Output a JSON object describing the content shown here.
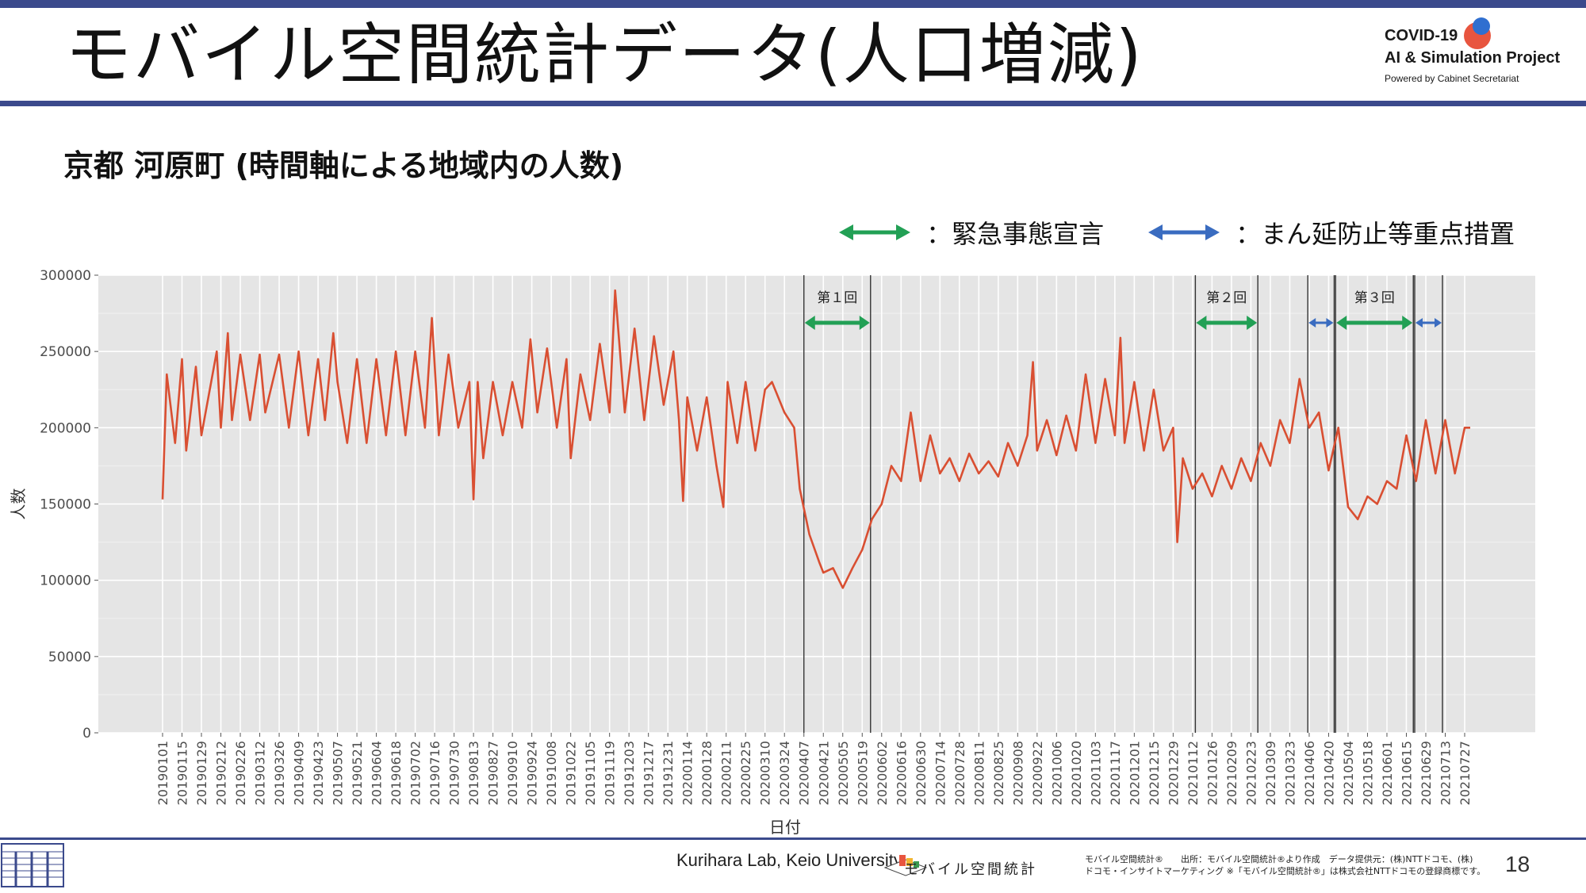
{
  "slide": {
    "title": "モバイル空間統計データ(人口増減)",
    "subtitle": "京都 河原町 (時間軸による地域内の人数)",
    "page_number": "18"
  },
  "logo": {
    "line1": "COVID-19",
    "line2": "AI & Simulation Project",
    "line3": "Powered by Cabinet Secretariat"
  },
  "legend": {
    "emergency": "：緊急事態宣言",
    "priority": "：まん延防止等重点措置"
  },
  "footer": {
    "credit": "Kurihara Lab, Keio University",
    "mobile_logo": "モバイル空間統計",
    "source_line1": "モバイル空間統計®　　出所：モバイル空間統計®より作成　データ提供元：(株)NTTドコモ、(株)",
    "source_line2": "ドコモ・インサイトマーケティング ※「モバイル空間統計®」は株式会社NTTドコモの登録商標です。"
  },
  "colors": {
    "brand_blue": "#3b4a8c",
    "series_red": "#d94f32",
    "emergency_green": "#22a055",
    "priority_blue": "#3a6cc0",
    "panel_bg": "#e5e5e5"
  },
  "chart_data": {
    "type": "line",
    "xlabel": "日付",
    "ylabel": "人数",
    "ylim": [
      0,
      300000
    ],
    "yticks": [
      0,
      50000,
      100000,
      150000,
      200000,
      250000,
      300000
    ],
    "ytick_labels": [
      "0",
      "50000",
      "100000",
      "150000",
      "200000",
      "250000",
      "300000"
    ],
    "grid": true,
    "legend_position": "top-right",
    "x_start": "20190101",
    "x_end": "20210731",
    "x_tick_labels": [
      "20190101",
      "20190115",
      "20190129",
      "20190212",
      "20190226",
      "20190312",
      "20190326",
      "20190409",
      "20190423",
      "20190507",
      "20190521",
      "20190604",
      "20190618",
      "20190702",
      "20190716",
      "20190730",
      "20190813",
      "20190827",
      "20190910",
      "20190924",
      "20191008",
      "20191022",
      "20191105",
      "20191119",
      "20191203",
      "20191217",
      "20191231",
      "20200114",
      "20200128",
      "20200211",
      "20200225",
      "20200310",
      "20200324",
      "20200407",
      "20200421",
      "20200505",
      "20200519",
      "20200602",
      "20200616",
      "20200630",
      "20200714",
      "20200728",
      "20200811",
      "20200825",
      "20200908",
      "20200922",
      "20201006",
      "20201020",
      "20201103",
      "20201117",
      "20201201",
      "20201215",
      "20201229",
      "20210112",
      "20210126",
      "20210209",
      "20210223",
      "20210309",
      "20210323",
      "20210406",
      "20210420",
      "20210504",
      "20210518",
      "20210601",
      "20210615",
      "20210629",
      "20210713",
      "20210727"
    ],
    "series": [
      {
        "color": "#d94f32",
        "points": [
          [
            "20190101",
            153000
          ],
          [
            "20190104",
            235000
          ],
          [
            "20190110",
            190000
          ],
          [
            "20190115",
            245000
          ],
          [
            "20190118",
            185000
          ],
          [
            "20190125",
            240000
          ],
          [
            "20190129",
            195000
          ],
          [
            "20190205",
            230000
          ],
          [
            "20190209",
            250000
          ],
          [
            "20190212",
            200000
          ],
          [
            "20190217",
            262000
          ],
          [
            "20190220",
            205000
          ],
          [
            "20190226",
            248000
          ],
          [
            "20190305",
            205000
          ],
          [
            "20190312",
            248000
          ],
          [
            "20190316",
            210000
          ],
          [
            "20190326",
            248000
          ],
          [
            "20190402",
            200000
          ],
          [
            "20190409",
            250000
          ],
          [
            "20190416",
            195000
          ],
          [
            "20190423",
            245000
          ],
          [
            "20190428",
            205000
          ],
          [
            "20190504",
            262000
          ],
          [
            "20190507",
            230000
          ],
          [
            "20190514",
            190000
          ],
          [
            "20190521",
            245000
          ],
          [
            "20190528",
            190000
          ],
          [
            "20190604",
            245000
          ],
          [
            "20190611",
            195000
          ],
          [
            "20190618",
            250000
          ],
          [
            "20190625",
            195000
          ],
          [
            "20190702",
            250000
          ],
          [
            "20190709",
            200000
          ],
          [
            "20190714",
            272000
          ],
          [
            "20190719",
            195000
          ],
          [
            "20190726",
            248000
          ],
          [
            "20190802",
            200000
          ],
          [
            "20190810",
            230000
          ],
          [
            "20190813",
            153000
          ],
          [
            "20190816",
            230000
          ],
          [
            "20190820",
            180000
          ],
          [
            "20190827",
            230000
          ],
          [
            "20190903",
            195000
          ],
          [
            "20190910",
            230000
          ],
          [
            "20190917",
            200000
          ],
          [
            "20190923",
            258000
          ],
          [
            "20190928",
            210000
          ],
          [
            "20191005",
            252000
          ],
          [
            "20191012",
            200000
          ],
          [
            "20191019",
            245000
          ],
          [
            "20191022",
            180000
          ],
          [
            "20191029",
            235000
          ],
          [
            "20191105",
            205000
          ],
          [
            "20191112",
            255000
          ],
          [
            "20191119",
            210000
          ],
          [
            "20191123",
            290000
          ],
          [
            "20191130",
            210000
          ],
          [
            "20191207",
            265000
          ],
          [
            "20191214",
            205000
          ],
          [
            "20191221",
            260000
          ],
          [
            "20191228",
            215000
          ],
          [
            "20200104",
            250000
          ],
          [
            "20200108",
            205000
          ],
          [
            "20200111",
            152000
          ],
          [
            "20200114",
            220000
          ],
          [
            "20200121",
            185000
          ],
          [
            "20200128",
            220000
          ],
          [
            "20200204",
            175000
          ],
          [
            "20200209",
            148000
          ],
          [
            "20200212",
            230000
          ],
          [
            "20200219",
            190000
          ],
          [
            "20200225",
            230000
          ],
          [
            "20200303",
            185000
          ],
          [
            "20200310",
            225000
          ],
          [
            "20200315",
            230000
          ],
          [
            "20200324",
            210000
          ],
          [
            "20200331",
            200000
          ],
          [
            "20200404",
            160000
          ],
          [
            "20200411",
            130000
          ],
          [
            "20200418",
            112000
          ],
          [
            "20200421",
            105000
          ],
          [
            "20200428",
            108000
          ],
          [
            "20200505",
            95000
          ],
          [
            "20200512",
            108000
          ],
          [
            "20200519",
            120000
          ],
          [
            "20200526",
            140000
          ],
          [
            "20200602",
            150000
          ],
          [
            "20200609",
            175000
          ],
          [
            "20200616",
            165000
          ],
          [
            "20200623",
            210000
          ],
          [
            "20200630",
            165000
          ],
          [
            "20200707",
            195000
          ],
          [
            "20200714",
            170000
          ],
          [
            "20200721",
            180000
          ],
          [
            "20200728",
            165000
          ],
          [
            "20200804",
            183000
          ],
          [
            "20200811",
            170000
          ],
          [
            "20200818",
            178000
          ],
          [
            "20200825",
            168000
          ],
          [
            "20200901",
            190000
          ],
          [
            "20200908",
            175000
          ],
          [
            "20200915",
            195000
          ],
          [
            "20200919",
            243000
          ],
          [
            "20200922",
            185000
          ],
          [
            "20200929",
            205000
          ],
          [
            "20201006",
            182000
          ],
          [
            "20201013",
            208000
          ],
          [
            "20201020",
            185000
          ],
          [
            "20201027",
            235000
          ],
          [
            "20201103",
            190000
          ],
          [
            "20201110",
            232000
          ],
          [
            "20201117",
            195000
          ],
          [
            "20201121",
            259000
          ],
          [
            "20201124",
            190000
          ],
          [
            "20201201",
            230000
          ],
          [
            "20201208",
            185000
          ],
          [
            "20201215",
            225000
          ],
          [
            "20201222",
            185000
          ],
          [
            "20201229",
            200000
          ],
          [
            "20210101",
            125000
          ],
          [
            "20210105",
            180000
          ],
          [
            "20210112",
            160000
          ],
          [
            "20210119",
            170000
          ],
          [
            "20210126",
            155000
          ],
          [
            "20210202",
            175000
          ],
          [
            "20210209",
            160000
          ],
          [
            "20210216",
            180000
          ],
          [
            "20210223",
            165000
          ],
          [
            "20210302",
            190000
          ],
          [
            "20210309",
            175000
          ],
          [
            "20210316",
            205000
          ],
          [
            "20210323",
            190000
          ],
          [
            "20210330",
            232000
          ],
          [
            "20210406",
            200000
          ],
          [
            "20210413",
            210000
          ],
          [
            "20210420",
            172000
          ],
          [
            "20210427",
            200000
          ],
          [
            "20210504",
            148000
          ],
          [
            "20210511",
            140000
          ],
          [
            "20210518",
            155000
          ],
          [
            "20210525",
            150000
          ],
          [
            "20210601",
            165000
          ],
          [
            "20210608",
            160000
          ],
          [
            "20210615",
            195000
          ],
          [
            "20210622",
            165000
          ],
          [
            "20210629",
            205000
          ],
          [
            "20210706",
            170000
          ],
          [
            "20210713",
            205000
          ],
          [
            "20210720",
            170000
          ],
          [
            "20210727",
            200000
          ],
          [
            "20210731",
            200000
          ]
        ]
      }
    ],
    "periods": [
      {
        "label": "第１回",
        "kind": "emergency",
        "start": "20200407",
        "end": "20200525"
      },
      {
        "label": "第２回",
        "kind": "emergency",
        "start": "20210114",
        "end": "20210228"
      },
      {
        "label": "",
        "kind": "priority",
        "start": "20210405",
        "end": "20210424"
      },
      {
        "label": "第３回",
        "kind": "emergency",
        "start": "20210425",
        "end": "20210620"
      },
      {
        "label": "",
        "kind": "priority",
        "start": "20210621",
        "end": "20210711"
      }
    ]
  }
}
